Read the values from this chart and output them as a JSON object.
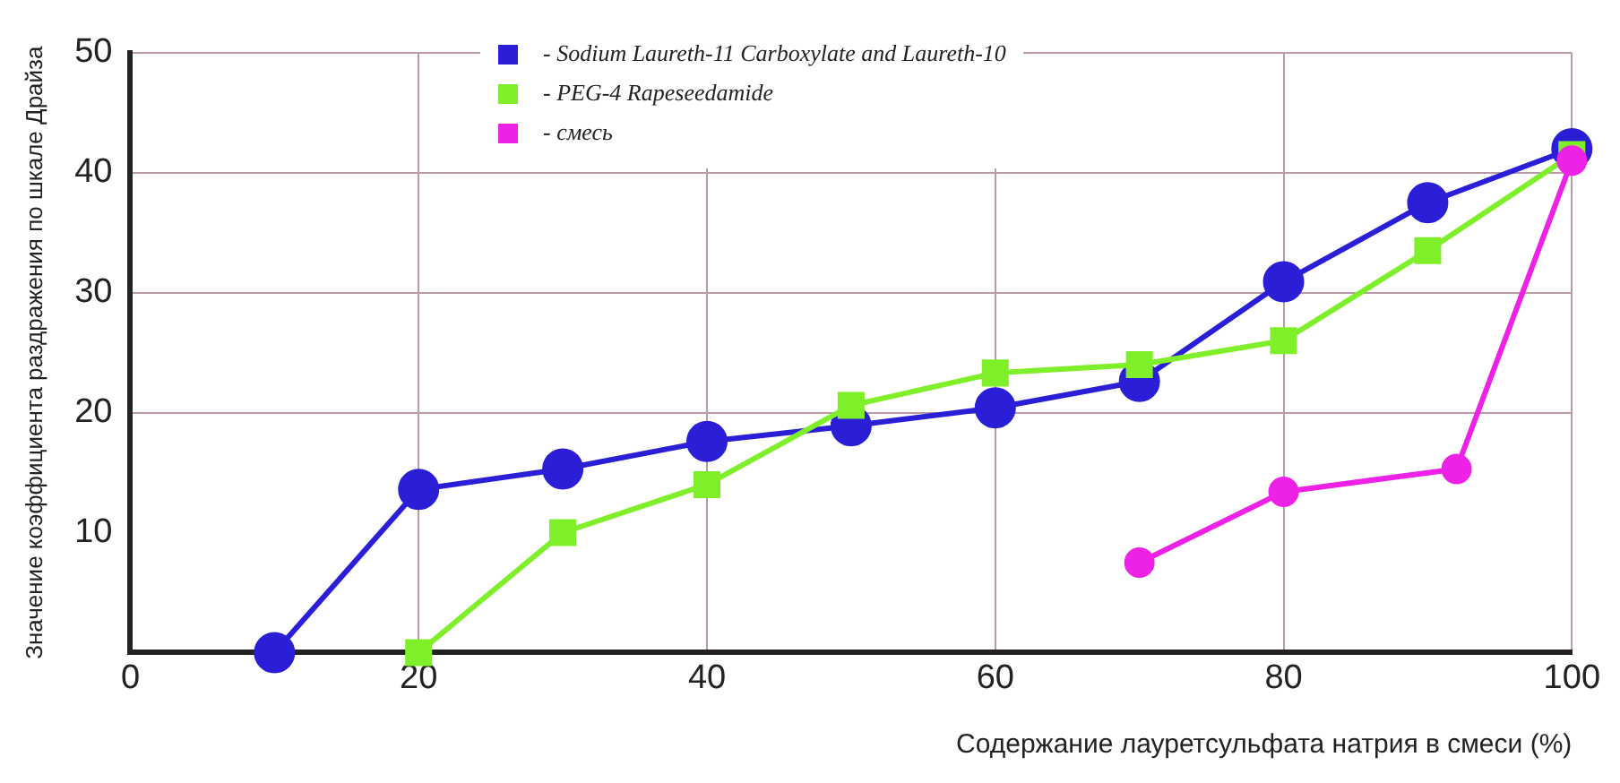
{
  "chart_data": {
    "type": "line",
    "xlabel": "Содержание лауретсульфата натрия в смеси (%)",
    "ylabel": "Значение коэффициента раздражения по шкале Драйза",
    "xlim": [
      0,
      100
    ],
    "xticks": [
      0,
      20,
      40,
      60,
      80,
      100
    ],
    "ylim": [
      0,
      50
    ],
    "yticks": [
      10,
      20,
      30,
      40,
      50
    ],
    "grid": true,
    "legend": "top",
    "line_style": "solid",
    "series": [
      {
        "name": "- Sodium Laureth-11 Carboxylate and Laureth-10",
        "color": "#2a1fd6",
        "marker": "circle",
        "x": [
          10,
          20,
          30,
          40,
          50,
          60,
          70,
          80,
          90,
          100
        ],
        "values": [
          0,
          13.6,
          15.3,
          17.6,
          18.9,
          20.4,
          22.6,
          30.9,
          37.5,
          42
        ]
      },
      {
        "name": "- PEG-4 Rapeseedamide",
        "color": "#7fef2a",
        "marker": "square",
        "x": [
          20,
          30,
          40,
          50,
          60,
          70,
          80,
          90,
          100
        ],
        "values": [
          0,
          10,
          14,
          20.6,
          23.3,
          24,
          26,
          33.5,
          41.5
        ]
      },
      {
        "name": "- смесь",
        "color": "#ee22e6",
        "marker": "circle",
        "x": [
          70,
          80,
          92,
          100
        ],
        "values": [
          7.5,
          13.4,
          15.3,
          41
        ]
      }
    ]
  }
}
